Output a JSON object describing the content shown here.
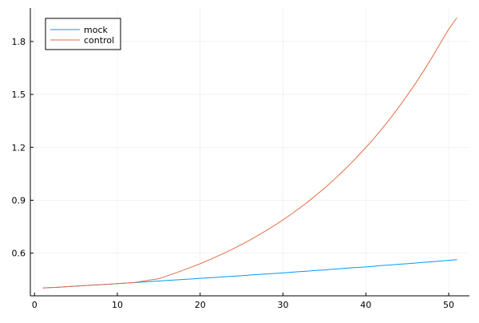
{
  "chart_data": {
    "type": "line",
    "title": "",
    "xlabel": "",
    "ylabel": "",
    "xlim": [
      -0.5,
      52.5
    ],
    "ylim": [
      0.358,
      1.99
    ],
    "xticks": [
      0,
      10,
      20,
      30,
      40,
      50
    ],
    "xtick_labels": [
      "0",
      "10",
      "20",
      "30",
      "40",
      "50"
    ],
    "yticks": [
      0.6,
      0.9,
      1.2,
      1.5,
      1.8
    ],
    "ytick_labels": [
      "0.6",
      "0.9",
      "1.2",
      "1.5",
      "1.8"
    ],
    "grid": true,
    "legend_position": "top-left",
    "x": [
      1,
      2,
      3,
      4,
      5,
      6,
      7,
      8,
      9,
      10,
      11,
      12,
      13,
      14,
      15,
      16,
      17,
      18,
      19,
      20,
      21,
      22,
      23,
      24,
      25,
      26,
      27,
      28,
      29,
      30,
      31,
      32,
      33,
      34,
      35,
      36,
      37,
      38,
      39,
      40,
      41,
      42,
      43,
      44,
      45,
      46,
      47,
      48,
      49,
      50,
      51
    ],
    "series": [
      {
        "name": "mock",
        "color": "#009AFA",
        "values": [
          0.402,
          0.405,
          0.407,
          0.41,
          0.413,
          0.416,
          0.419,
          0.421,
          0.424,
          0.427,
          0.43,
          0.433,
          0.436,
          0.439,
          0.442,
          0.445,
          0.448,
          0.451,
          0.454,
          0.457,
          0.46,
          0.463,
          0.466,
          0.469,
          0.472,
          0.476,
          0.479,
          0.482,
          0.485,
          0.488,
          0.492,
          0.495,
          0.498,
          0.502,
          0.505,
          0.509,
          0.512,
          0.516,
          0.519,
          0.522,
          0.526,
          0.53,
          0.533,
          0.537,
          0.54,
          0.544,
          0.548,
          0.551,
          0.555,
          0.559,
          0.563
        ]
      },
      {
        "name": "control",
        "color": "#E26F46",
        "values": [
          0.402,
          0.405,
          0.407,
          0.41,
          0.413,
          0.416,
          0.419,
          0.421,
          0.424,
          0.427,
          0.43,
          0.433,
          0.441,
          0.448,
          0.455,
          0.471,
          0.487,
          0.504,
          0.522,
          0.54,
          0.56,
          0.581,
          0.602,
          0.625,
          0.649,
          0.674,
          0.701,
          0.729,
          0.758,
          0.789,
          0.821,
          0.855,
          0.891,
          0.929,
          0.968,
          1.01,
          1.054,
          1.1,
          1.148,
          1.199,
          1.252,
          1.308,
          1.367,
          1.43,
          1.495,
          1.563,
          1.635,
          1.711,
          1.791,
          1.87,
          1.935
        ]
      }
    ]
  }
}
